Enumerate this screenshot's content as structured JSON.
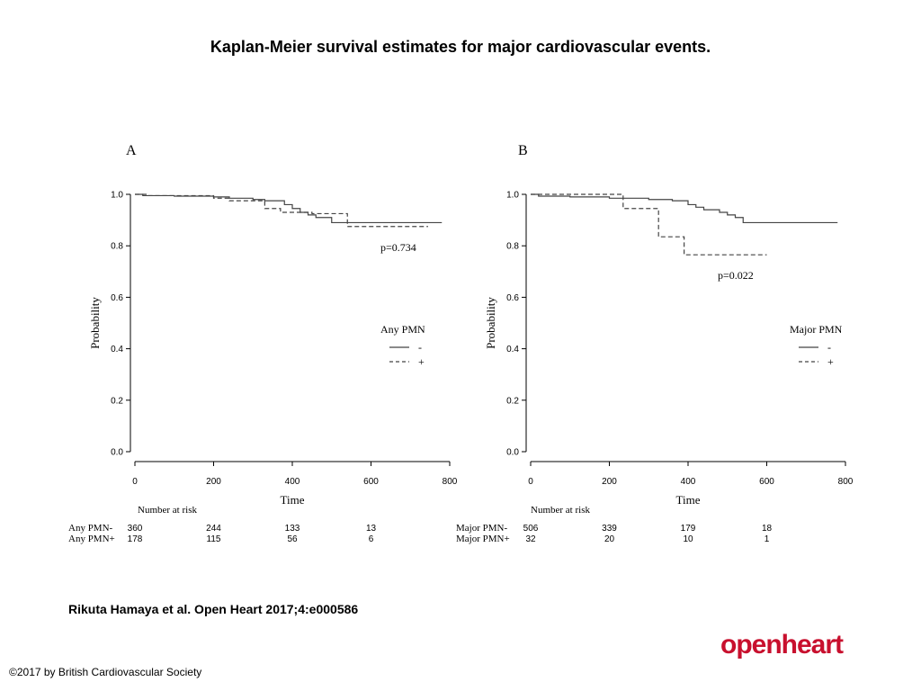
{
  "title": "Kaplan-Meier survival estimates for major cardiovascular events.",
  "citation": "Rikuta Hamaya et al. Open Heart 2017;4:e000586",
  "copyright": "©2017 by British Cardiovascular Society",
  "logo_text": "openheart",
  "colors": {
    "logo": "#c8102e",
    "lines": "#444444"
  },
  "chart_data": [
    {
      "type": "line",
      "panel_label": "A",
      "xlabel": "Time",
      "ylabel": "Probability",
      "xlim": [
        0,
        800
      ],
      "ylim": [
        0,
        1
      ],
      "xticks": [
        "0",
        "200",
        "400",
        "600",
        "800"
      ],
      "yticks": [
        "0.0",
        "0.2",
        "0.4",
        "0.6",
        "0.8",
        "1.0"
      ],
      "legend_title": "Any PMN",
      "legend_placement": "right",
      "p_value": "p=0.734",
      "series": [
        {
          "name": "-",
          "style": "solid",
          "points": [
            [
              0,
              1.0
            ],
            [
              20,
              0.995
            ],
            [
              100,
              0.993
            ],
            [
              200,
              0.99
            ],
            [
              240,
              0.985
            ],
            [
              300,
              0.98
            ],
            [
              330,
              0.975
            ],
            [
              380,
              0.96
            ],
            [
              400,
              0.945
            ],
            [
              420,
              0.93
            ],
            [
              440,
              0.92
            ],
            [
              460,
              0.91
            ],
            [
              500,
              0.89
            ],
            [
              550,
              0.89
            ],
            [
              780,
              0.89
            ]
          ]
        },
        {
          "name": "+",
          "style": "dashed",
          "points": [
            [
              0,
              1.0
            ],
            [
              30,
              0.995
            ],
            [
              200,
              0.985
            ],
            [
              240,
              0.975
            ],
            [
              330,
              0.975
            ],
            [
              330,
              0.945
            ],
            [
              370,
              0.945
            ],
            [
              370,
              0.93
            ],
            [
              450,
              0.925
            ],
            [
              540,
              0.925
            ],
            [
              540,
              0.875
            ],
            [
              745,
              0.875
            ]
          ]
        }
      ],
      "risk_table": {
        "label": "Number at risk",
        "times": [
          0,
          200,
          400,
          600
        ],
        "rows": [
          {
            "label": "Any PMN-",
            "values": [
              "360",
              "244",
              "133",
              "13"
            ]
          },
          {
            "label": "Any PMN+",
            "values": [
              "178",
              "115",
              "56",
              "6"
            ]
          }
        ]
      }
    },
    {
      "type": "line",
      "panel_label": "B",
      "xlabel": "Time",
      "ylabel": "Probability",
      "xlim": [
        0,
        800
      ],
      "ylim": [
        0,
        1
      ],
      "xticks": [
        "0",
        "200",
        "400",
        "600",
        "800"
      ],
      "yticks": [
        "0.0",
        "0.2",
        "0.4",
        "0.6",
        "0.8",
        "1.0"
      ],
      "legend_title": "Major PMN",
      "legend_placement": "right",
      "p_value": "p=0.022",
      "series": [
        {
          "name": "-",
          "style": "solid",
          "points": [
            [
              0,
              1.0
            ],
            [
              20,
              0.993
            ],
            [
              100,
              0.99
            ],
            [
              200,
              0.985
            ],
            [
              300,
              0.98
            ],
            [
              360,
              0.975
            ],
            [
              400,
              0.96
            ],
            [
              420,
              0.95
            ],
            [
              440,
              0.94
            ],
            [
              480,
              0.93
            ],
            [
              500,
              0.92
            ],
            [
              520,
              0.91
            ],
            [
              540,
              0.89
            ],
            [
              780,
              0.89
            ]
          ]
        },
        {
          "name": "+",
          "style": "dashed",
          "points": [
            [
              0,
              1.0
            ],
            [
              235,
              1.0
            ],
            [
              235,
              0.945
            ],
            [
              325,
              0.945
            ],
            [
              325,
              0.835
            ],
            [
              390,
              0.835
            ],
            [
              390,
              0.765
            ],
            [
              600,
              0.765
            ]
          ]
        }
      ],
      "risk_table": {
        "label": "Number at risk",
        "times": [
          0,
          200,
          400,
          600
        ],
        "rows": [
          {
            "label": "Major PMN-",
            "values": [
              "506",
              "339",
              "179",
              "18"
            ]
          },
          {
            "label": "Major PMN+",
            "values": [
              "32",
              "20",
              "10",
              "1"
            ]
          }
        ]
      }
    }
  ]
}
